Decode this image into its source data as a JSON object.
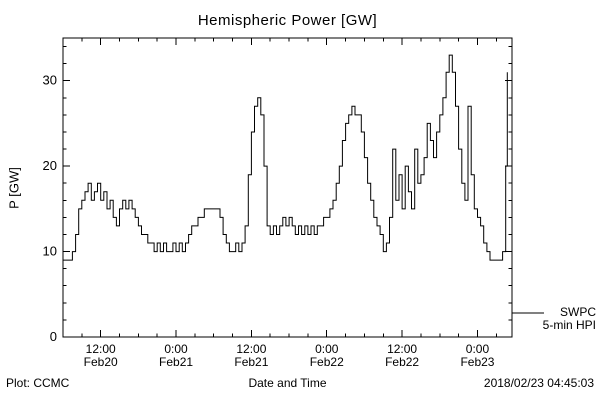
{
  "title": "Hemispheric Power [GW]",
  "footer": {
    "left": "Plot: CCMC",
    "right": "2018/02/23 04:45:03"
  },
  "legend": {
    "line1": "SWPC",
    "line2": "5-min HPI"
  },
  "colors": {
    "foreground": "#000000",
    "background": "#ffffff"
  },
  "chart_data": {
    "type": "line",
    "style": "step",
    "title": "Hemispheric Power [GW]",
    "xlabel": "Date and Time",
    "ylabel": "P [GW]",
    "series_name": "SWPC 5-min HPI",
    "x_unit": "hours since Feb20 00:00",
    "xlim": [
      6,
      77.5
    ],
    "ylim": [
      0,
      35
    ],
    "grid": false,
    "legend_position": "right-bottom-outside",
    "yticks": [
      0,
      10,
      20,
      30
    ],
    "xticks": [
      {
        "pos": 12,
        "time": "12:00",
        "date": "Feb20"
      },
      {
        "pos": 24,
        "time": "0:00",
        "date": "Feb21"
      },
      {
        "pos": 36,
        "time": "12:00",
        "date": "Feb21"
      },
      {
        "pos": 48,
        "time": "0:00",
        "date": "Feb22"
      },
      {
        "pos": 60,
        "time": "12:00",
        "date": "Feb22"
      },
      {
        "pos": 72,
        "time": "0:00",
        "date": "Feb23"
      }
    ],
    "points": [
      [
        6,
        9
      ],
      [
        6.5,
        9
      ],
      [
        7,
        9
      ],
      [
        7.5,
        10
      ],
      [
        8,
        12
      ],
      [
        8.5,
        15
      ],
      [
        9,
        16
      ],
      [
        9.5,
        17
      ],
      [
        10,
        18
      ],
      [
        10.5,
        16
      ],
      [
        11,
        17
      ],
      [
        11.5,
        18
      ],
      [
        12,
        16
      ],
      [
        12.5,
        17
      ],
      [
        13,
        15
      ],
      [
        13.5,
        16
      ],
      [
        14,
        14
      ],
      [
        14.5,
        13
      ],
      [
        15,
        15
      ],
      [
        15.5,
        16
      ],
      [
        16,
        15
      ],
      [
        16.5,
        16
      ],
      [
        17,
        15
      ],
      [
        17.5,
        14
      ],
      [
        18,
        13
      ],
      [
        18.5,
        12
      ],
      [
        19,
        12
      ],
      [
        19.5,
        11
      ],
      [
        20,
        11
      ],
      [
        20.5,
        10
      ],
      [
        21,
        11
      ],
      [
        21.5,
        10
      ],
      [
        22,
        11
      ],
      [
        22.5,
        10
      ],
      [
        23,
        10
      ],
      [
        23.5,
        11
      ],
      [
        24,
        10
      ],
      [
        24.5,
        11
      ],
      [
        25,
        10
      ],
      [
        25.5,
        11
      ],
      [
        26,
        12
      ],
      [
        26.5,
        13
      ],
      [
        27,
        13
      ],
      [
        27.5,
        14
      ],
      [
        28,
        14
      ],
      [
        28.5,
        15
      ],
      [
        29,
        15
      ],
      [
        29.5,
        15
      ],
      [
        30,
        15
      ],
      [
        30.5,
        15
      ],
      [
        31,
        14
      ],
      [
        31.5,
        12
      ],
      [
        32,
        11
      ],
      [
        32.5,
        10
      ],
      [
        33,
        10
      ],
      [
        33.5,
        11
      ],
      [
        34,
        10
      ],
      [
        34.5,
        11
      ],
      [
        35,
        13
      ],
      [
        35.5,
        19
      ],
      [
        36,
        24
      ],
      [
        36.5,
        27
      ],
      [
        37,
        28
      ],
      [
        37.5,
        26
      ],
      [
        38,
        20
      ],
      [
        38.5,
        13
      ],
      [
        39,
        12
      ],
      [
        39.5,
        13
      ],
      [
        40,
        12
      ],
      [
        40.5,
        13
      ],
      [
        41,
        14
      ],
      [
        41.5,
        13
      ],
      [
        42,
        14
      ],
      [
        42.5,
        13
      ],
      [
        43,
        12
      ],
      [
        43.5,
        13
      ],
      [
        44,
        12
      ],
      [
        44.5,
        13
      ],
      [
        45,
        12
      ],
      [
        45.5,
        13
      ],
      [
        46,
        12
      ],
      [
        46.5,
        13
      ],
      [
        47,
        13
      ],
      [
        47.5,
        14
      ],
      [
        48,
        14
      ],
      [
        48.5,
        15
      ],
      [
        49,
        16
      ],
      [
        49.5,
        18
      ],
      [
        50,
        20
      ],
      [
        50.5,
        23
      ],
      [
        51,
        25
      ],
      [
        51.5,
        26
      ],
      [
        52,
        27
      ],
      [
        52.5,
        26
      ],
      [
        53,
        26
      ],
      [
        53.5,
        24
      ],
      [
        54,
        21
      ],
      [
        54.5,
        18
      ],
      [
        55,
        16
      ],
      [
        55.5,
        14
      ],
      [
        56,
        13
      ],
      [
        56.5,
        12
      ],
      [
        57,
        10
      ],
      [
        57.5,
        11
      ],
      [
        58,
        14
      ],
      [
        58.5,
        22
      ],
      [
        59,
        16
      ],
      [
        59.5,
        19
      ],
      [
        60,
        15
      ],
      [
        60.5,
        20
      ],
      [
        61,
        17
      ],
      [
        61.5,
        15
      ],
      [
        62,
        22
      ],
      [
        62.5,
        18
      ],
      [
        63,
        19
      ],
      [
        63.5,
        21
      ],
      [
        64,
        25
      ],
      [
        64.5,
        23
      ],
      [
        65,
        21
      ],
      [
        65.5,
        24
      ],
      [
        66,
        26
      ],
      [
        66.5,
        28
      ],
      [
        67,
        31
      ],
      [
        67.5,
        33
      ],
      [
        68,
        31
      ],
      [
        68.5,
        27
      ],
      [
        69,
        22
      ],
      [
        69.5,
        18
      ],
      [
        70,
        16
      ],
      [
        70.5,
        27
      ],
      [
        71,
        19
      ],
      [
        71.5,
        15
      ],
      [
        72,
        14
      ],
      [
        72.5,
        13
      ],
      [
        73,
        11
      ],
      [
        73.5,
        10
      ],
      [
        74,
        9
      ],
      [
        74.5,
        9
      ],
      [
        75,
        9
      ],
      [
        75.5,
        9
      ],
      [
        76,
        10
      ],
      [
        76.5,
        20
      ],
      [
        76.75,
        31
      ]
    ]
  }
}
